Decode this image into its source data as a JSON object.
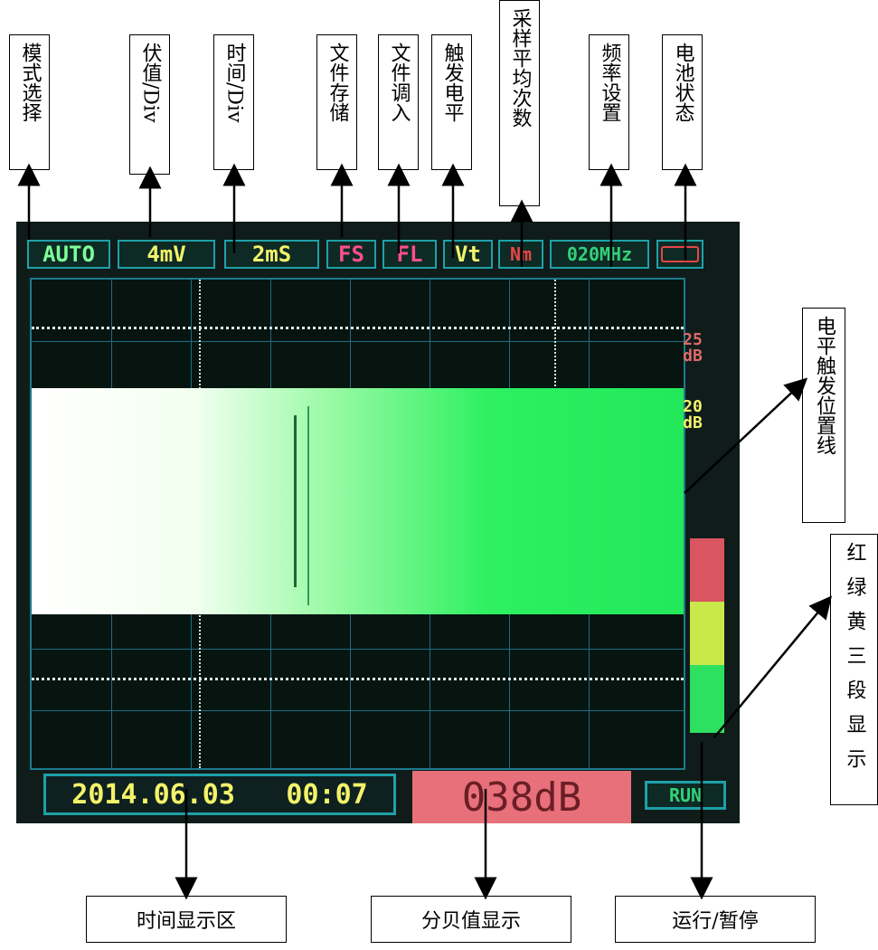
{
  "top_labels": [
    "模式选择",
    "伏值/Div",
    "时间/Div",
    "文件存储",
    "文件调入",
    "触发电平",
    "采样平均次数",
    "频率设置",
    "电池状态"
  ],
  "right_labels": {
    "trigger_line": "电平触发位置线",
    "three_segment": "红绿黄三段显示"
  },
  "bottom_labels": {
    "time_area": "时间显示区",
    "db_display": "分贝值显示",
    "run_pause": "运行/暂停"
  },
  "toolbar": {
    "mode": "AUTO",
    "volt_div": "4mV",
    "time_div": "2mS",
    "file_save": "FS",
    "file_load": "FL",
    "trigger": "Vt",
    "avg": "Nm",
    "freq": "020MHz"
  },
  "scale": {
    "top": "25 dB",
    "upper": "20 dB"
  },
  "status": {
    "date": "2014.06.03",
    "time": "00:07",
    "db": "038dB",
    "run": "RUN"
  },
  "colors": {
    "red_segment": "#d9555f",
    "yellow_segment": "#c9e84a",
    "green_segment": "#2ee060",
    "signal": "#22e85a"
  }
}
